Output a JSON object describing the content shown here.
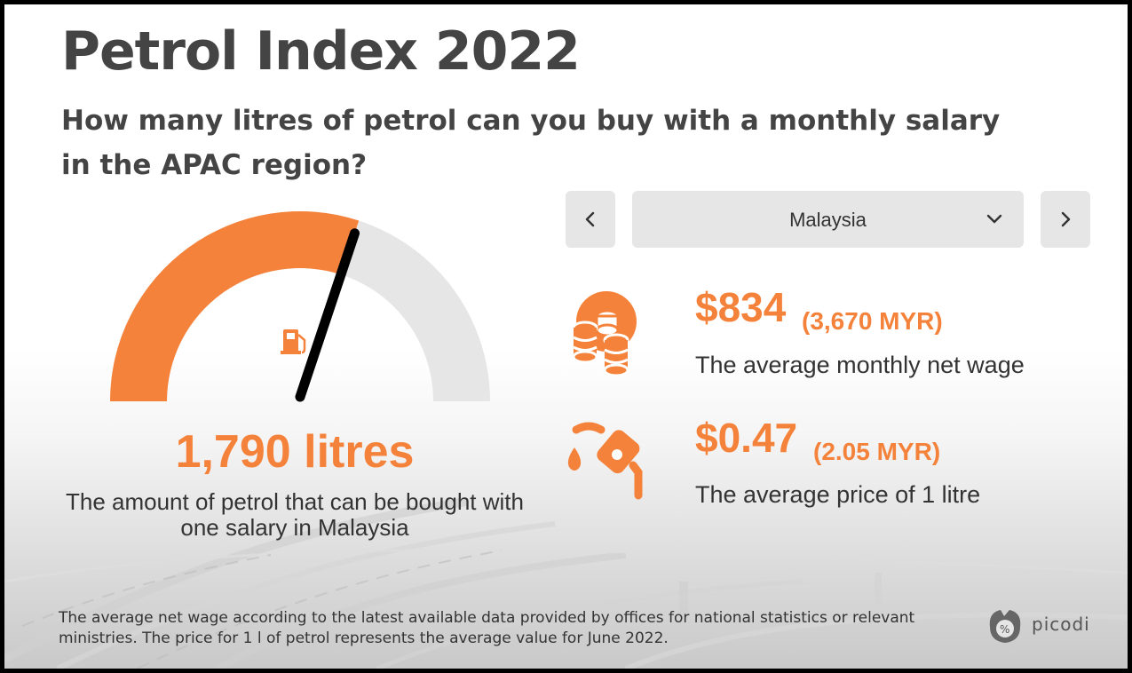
{
  "header": {
    "title": "Petrol Index 2022",
    "subtitle": "How many litres of petrol can you buy with a monthly salary in the APAC region?"
  },
  "gauge": {
    "value_fraction": 0.6,
    "icon": "fuel-pump-icon",
    "colors": {
      "fill": "#F5823A",
      "track": "#E6E6E6",
      "needle": "#000000"
    },
    "litres_text": "1,790 litres",
    "description": "The amount of petrol that can be bought with one salary in Malaysia"
  },
  "selector": {
    "prev_icon": "chevron-left-icon",
    "next_icon": "chevron-right-icon",
    "dropdown_icon": "chevron-down-icon",
    "selected_country": "Malaysia"
  },
  "stats": {
    "wage": {
      "icon": "coins-icon",
      "usd": "$834",
      "local": "(3,670 MYR)",
      "label": "The average monthly net wage"
    },
    "price": {
      "icon": "fuel-nozzle-icon",
      "usd": "$0.47",
      "local": "(2.05 MYR)",
      "label": "The average price of 1 litre"
    }
  },
  "footnote": "The average net wage according to the latest available data provided by offices for national statistics or relevant ministries. The price for 1 l of petrol represents the average value for June 2022.",
  "brand": {
    "name": "picodi",
    "icon": "picodi-logo-icon"
  },
  "colors": {
    "accent": "#F5823A",
    "text": "#333333",
    "title": "#444444",
    "button": "#E6E6E6"
  }
}
